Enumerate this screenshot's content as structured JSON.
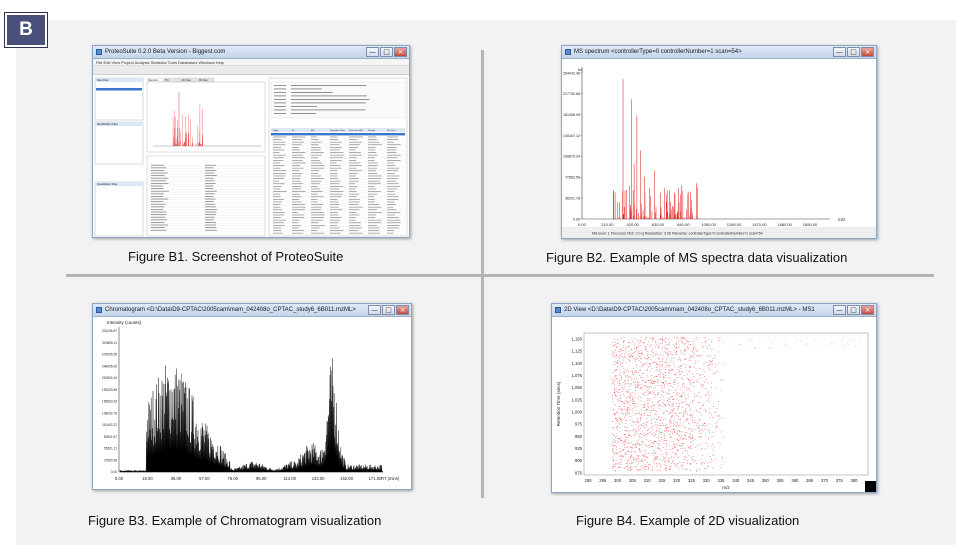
{
  "badge": "B",
  "figures": {
    "b1": {
      "caption": "Figure B1.  Screenshot of ProteoSuite",
      "window_title": "ProteoSuite 0.2.0 Beta Version - Biggest.com",
      "menu": "File  Edit  View  Project  Analysis  Statistics  Tools  Databases  Windows  Help",
      "panels": [
        "Raw Files",
        "Identification Files",
        "Quantitation Files"
      ],
      "tabs": [
        "Spectrum",
        "TIC",
        "2D View",
        "3D View"
      ],
      "table_headers": [
        "Index",
        "ID",
        "MS",
        "Retention Time",
        "Precursor M/Z",
        "Charge",
        "RT (sec)"
      ]
    },
    "b2": {
      "caption": "Figure B2.  Example of MS spectra data visualization",
      "window_title": "MS spectrum <controllerType=0 controllerNumber=1 scan=54>",
      "y_label": "Int",
      "x_label": "m/z",
      "y_ticks": [
        "0.00",
        "36291.78",
        "72583.56",
        "108875.34",
        "145167.12",
        "181458.90",
        "217750.68",
        "254042.46"
      ],
      "x_ticks": [
        "0.00",
        "210.00",
        "420.00",
        "630.00",
        "840.00",
        "1050.00",
        "1260.00",
        "1470.00",
        "1680.00",
        "1890.00"
      ],
      "footer": "MS level: 1    Precursor M/Z: 0.0 ()    Resolution: 3.26    Filename: controllerType=0 controllerNumber=1 scan=54"
    },
    "b3": {
      "caption": "Figure B3.  Example of Chromatogram visualization",
      "window_title": "Chromatogram <D:\\Data\\D9-CPTAC\\2005cam\\mam_042408o_CPTAC_study6_6B011.mzML>",
      "y_label": "Intensity (counts)",
      "x_label": "RT (mins)",
      "y_ticks": [
        "0.00",
        "27600.56",
        "55201.11",
        "82801.67",
        "110402.22",
        "138002.78",
        "165603.33",
        "193203.89",
        "220804.44",
        "248405.00",
        "276005.56",
        "303606.11",
        "331206.67"
      ],
      "x_ticks": [
        "0.00",
        "19.00",
        "38.00",
        "57.00",
        "76.00",
        "95.00",
        "114.00",
        "133.00",
        "152.00",
        "171.00"
      ]
    },
    "b4": {
      "caption": "Figure B4.  Example of 2D visualization",
      "window_title": "2D View <D:\\Data\\D9-CPTAC\\2005cam\\mam_042408o_CPTAC_study6_6B011.mzML> - MS1",
      "y_label": "Retention Time (secs)",
      "x_label": "m/z",
      "y_ticks": [
        "875",
        "900",
        "925",
        "950",
        "975",
        "1,000",
        "1,025",
        "1,050",
        "1,075",
        "1,100",
        "1,125",
        "1,150"
      ],
      "x_ticks": [
        "290",
        "295",
        "300",
        "305",
        "310",
        "315",
        "320",
        "325",
        "330",
        "335",
        "340",
        "345",
        "350",
        "355",
        "360",
        "365",
        "370",
        "375",
        "380"
      ]
    }
  },
  "colors": {
    "badge": "#49507a",
    "spectrum_peaks": "#e01010",
    "chromatogram": "#000000",
    "dots_2d": "#e03030"
  },
  "window_buttons": [
    "—",
    "□",
    "×"
  ]
}
